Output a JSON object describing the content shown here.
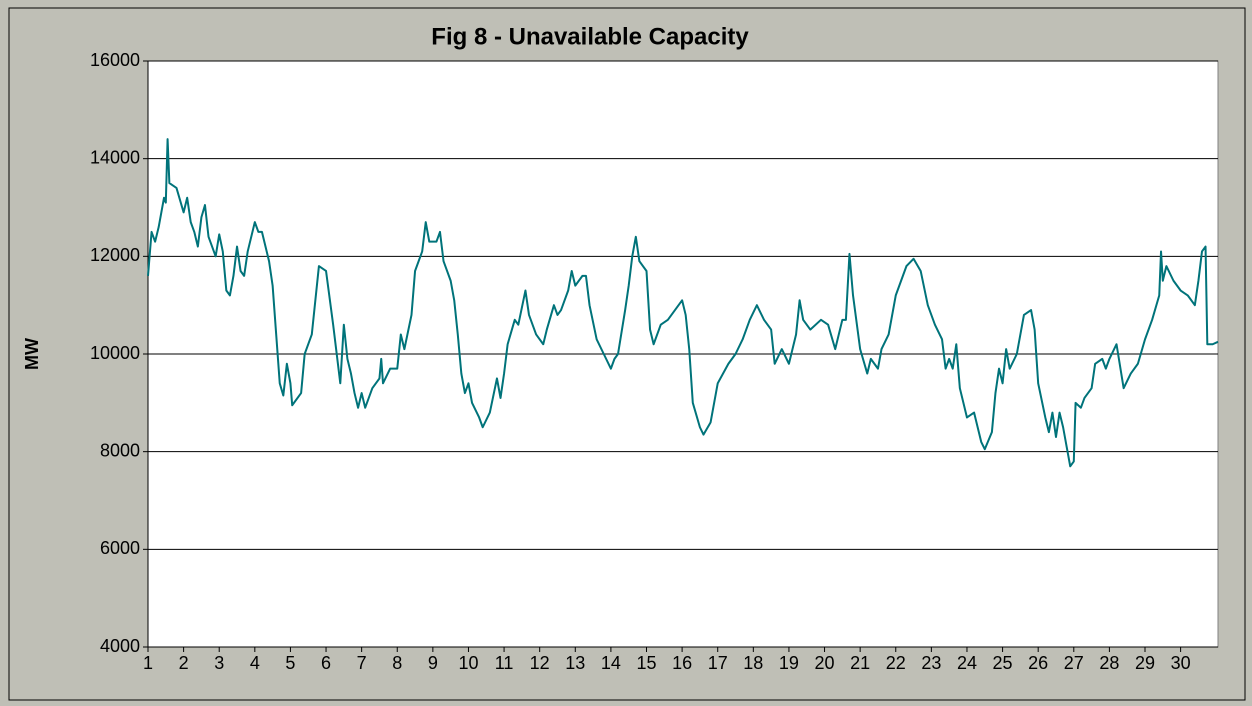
{
  "chart_data": {
    "type": "line",
    "title": "Fig 8 - Unavailable Capacity",
    "y_label": "MW",
    "x": [
      1.0,
      1.1,
      1.2,
      1.3,
      1.45,
      1.5,
      1.55,
      1.6,
      1.8,
      2.0,
      2.1,
      2.2,
      2.3,
      2.4,
      2.5,
      2.6,
      2.7,
      2.8,
      2.9,
      3.0,
      3.1,
      3.2,
      3.3,
      3.4,
      3.5,
      3.6,
      3.7,
      3.8,
      4.0,
      4.1,
      4.2,
      4.4,
      4.5,
      4.6,
      4.7,
      4.8,
      4.9,
      5.0,
      5.05,
      5.3,
      5.4,
      5.6,
      5.8,
      6.0,
      6.2,
      6.3,
      6.4,
      6.5,
      6.6,
      6.7,
      6.8,
      6.9,
      7.0,
      7.1,
      7.3,
      7.5,
      7.55,
      7.6,
      7.8,
      8.0,
      8.1,
      8.2,
      8.4,
      8.5,
      8.7,
      8.8,
      8.9,
      9.1,
      9.2,
      9.3,
      9.5,
      9.6,
      9.7,
      9.8,
      9.9,
      10.0,
      10.1,
      10.3,
      10.4,
      10.6,
      10.8,
      10.9,
      11.0,
      11.1,
      11.3,
      11.4,
      11.6,
      11.7,
      11.9,
      12.1,
      12.2,
      12.4,
      12.5,
      12.6,
      12.8,
      12.9,
      13.0,
      13.2,
      13.3,
      13.4,
      13.6,
      13.8,
      14.0,
      14.1,
      14.2,
      14.4,
      14.5,
      14.6,
      14.7,
      14.8,
      15.0,
      15.1,
      15.2,
      15.4,
      15.6,
      15.8,
      16.0,
      16.1,
      16.2,
      16.3,
      16.5,
      16.6,
      16.8,
      17.0,
      17.3,
      17.5,
      17.7,
      17.9,
      18.1,
      18.3,
      18.5,
      18.6,
      18.7,
      18.8,
      19.0,
      19.2,
      19.3,
      19.4,
      19.6,
      19.9,
      20.1,
      20.3,
      20.5,
      20.6,
      20.7,
      20.8,
      21.0,
      21.2,
      21.3,
      21.5,
      21.6,
      21.8,
      22.0,
      22.3,
      22.5,
      22.7,
      22.9,
      23.1,
      23.3,
      23.4,
      23.5,
      23.6,
      23.7,
      23.8,
      24.0,
      24.2,
      24.4,
      24.5,
      24.7,
      24.8,
      24.9,
      25.0,
      25.1,
      25.2,
      25.4,
      25.6,
      25.8,
      25.9,
      26.0,
      26.2,
      26.3,
      26.4,
      26.5,
      26.6,
      26.7,
      26.8,
      26.9,
      27.0,
      27.05,
      27.2,
      27.3,
      27.5,
      27.6,
      27.8,
      27.9,
      28.0,
      28.2,
      28.4,
      28.6,
      28.8,
      29.0,
      29.2,
      29.4,
      29.45,
      29.5,
      29.6,
      29.8,
      30.0,
      30.2,
      30.4,
      30.5,
      30.6,
      30.7,
      30.75,
      30.9,
      31.05
    ],
    "series": [
      {
        "name": "Unavailable Capacity",
        "color": "#00737a",
        "values": [
          11600,
          12500,
          12300,
          12600,
          13200,
          13100,
          14400,
          13500,
          13400,
          12900,
          13200,
          12700,
          12500,
          12200,
          12800,
          13050,
          12400,
          12200,
          12000,
          12450,
          12100,
          11300,
          11200,
          11600,
          12200,
          11700,
          11600,
          12100,
          12700,
          12500,
          12500,
          11900,
          11400,
          10400,
          9400,
          9150,
          9800,
          9400,
          8950,
          9200,
          10000,
          10400,
          11800,
          11700,
          10600,
          10000,
          9400,
          10600,
          9900,
          9600,
          9200,
          8900,
          9200,
          8900,
          9300,
          9500,
          9900,
          9400,
          9700,
          9700,
          10400,
          10100,
          10800,
          11700,
          12100,
          12700,
          12300,
          12300,
          12500,
          11900,
          11500,
          11100,
          10400,
          9600,
          9200,
          9400,
          9000,
          8700,
          8500,
          8800,
          9500,
          9100,
          9600,
          10200,
          10700,
          10600,
          11300,
          10800,
          10400,
          10200,
          10500,
          11000,
          10800,
          10900,
          11300,
          11700,
          11400,
          11600,
          11600,
          11000,
          10300,
          10000,
          9700,
          9900,
          10000,
          10900,
          11400,
          12000,
          12400,
          11900,
          11700,
          10500,
          10200,
          10600,
          10700,
          10900,
          11100,
          10800,
          10100,
          9000,
          8500,
          8350,
          8600,
          9400,
          9800,
          10000,
          10300,
          10700,
          11000,
          10700,
          10500,
          9800,
          9950,
          10100,
          9800,
          10400,
          11100,
          10700,
          10500,
          10700,
          10600,
          10100,
          10700,
          10700,
          12050,
          11200,
          10100,
          9600,
          9900,
          9700,
          10100,
          10400,
          11200,
          11800,
          11950,
          11700,
          11000,
          10600,
          10300,
          9700,
          9900,
          9700,
          10200,
          9300,
          8700,
          8800,
          8200,
          8050,
          8400,
          9200,
          9700,
          9400,
          10100,
          9700,
          10000,
          10800,
          10900,
          10500,
          9400,
          8700,
          8400,
          8800,
          8300,
          8800,
          8500,
          8100,
          7700,
          7800,
          9000,
          8900,
          9100,
          9300,
          9800,
          9900,
          9700,
          9900,
          10200,
          9300,
          9600,
          9800,
          10300,
          10700,
          11200,
          12100,
          11500,
          11800,
          11500,
          11300,
          11200,
          11000,
          11500,
          12100,
          12200,
          10200,
          10200,
          10250
        ]
      }
    ],
    "xlim": [
      1,
      31.05
    ],
    "xticks": [
      1,
      2,
      3,
      4,
      5,
      6,
      7,
      8,
      9,
      10,
      11,
      12,
      13,
      14,
      15,
      16,
      17,
      18,
      19,
      20,
      21,
      22,
      23,
      24,
      25,
      26,
      27,
      28,
      29,
      30
    ],
    "ylim": [
      4000,
      16000
    ],
    "yticks": [
      4000,
      6000,
      8000,
      10000,
      12000,
      14000,
      16000
    ],
    "grid": true
  }
}
